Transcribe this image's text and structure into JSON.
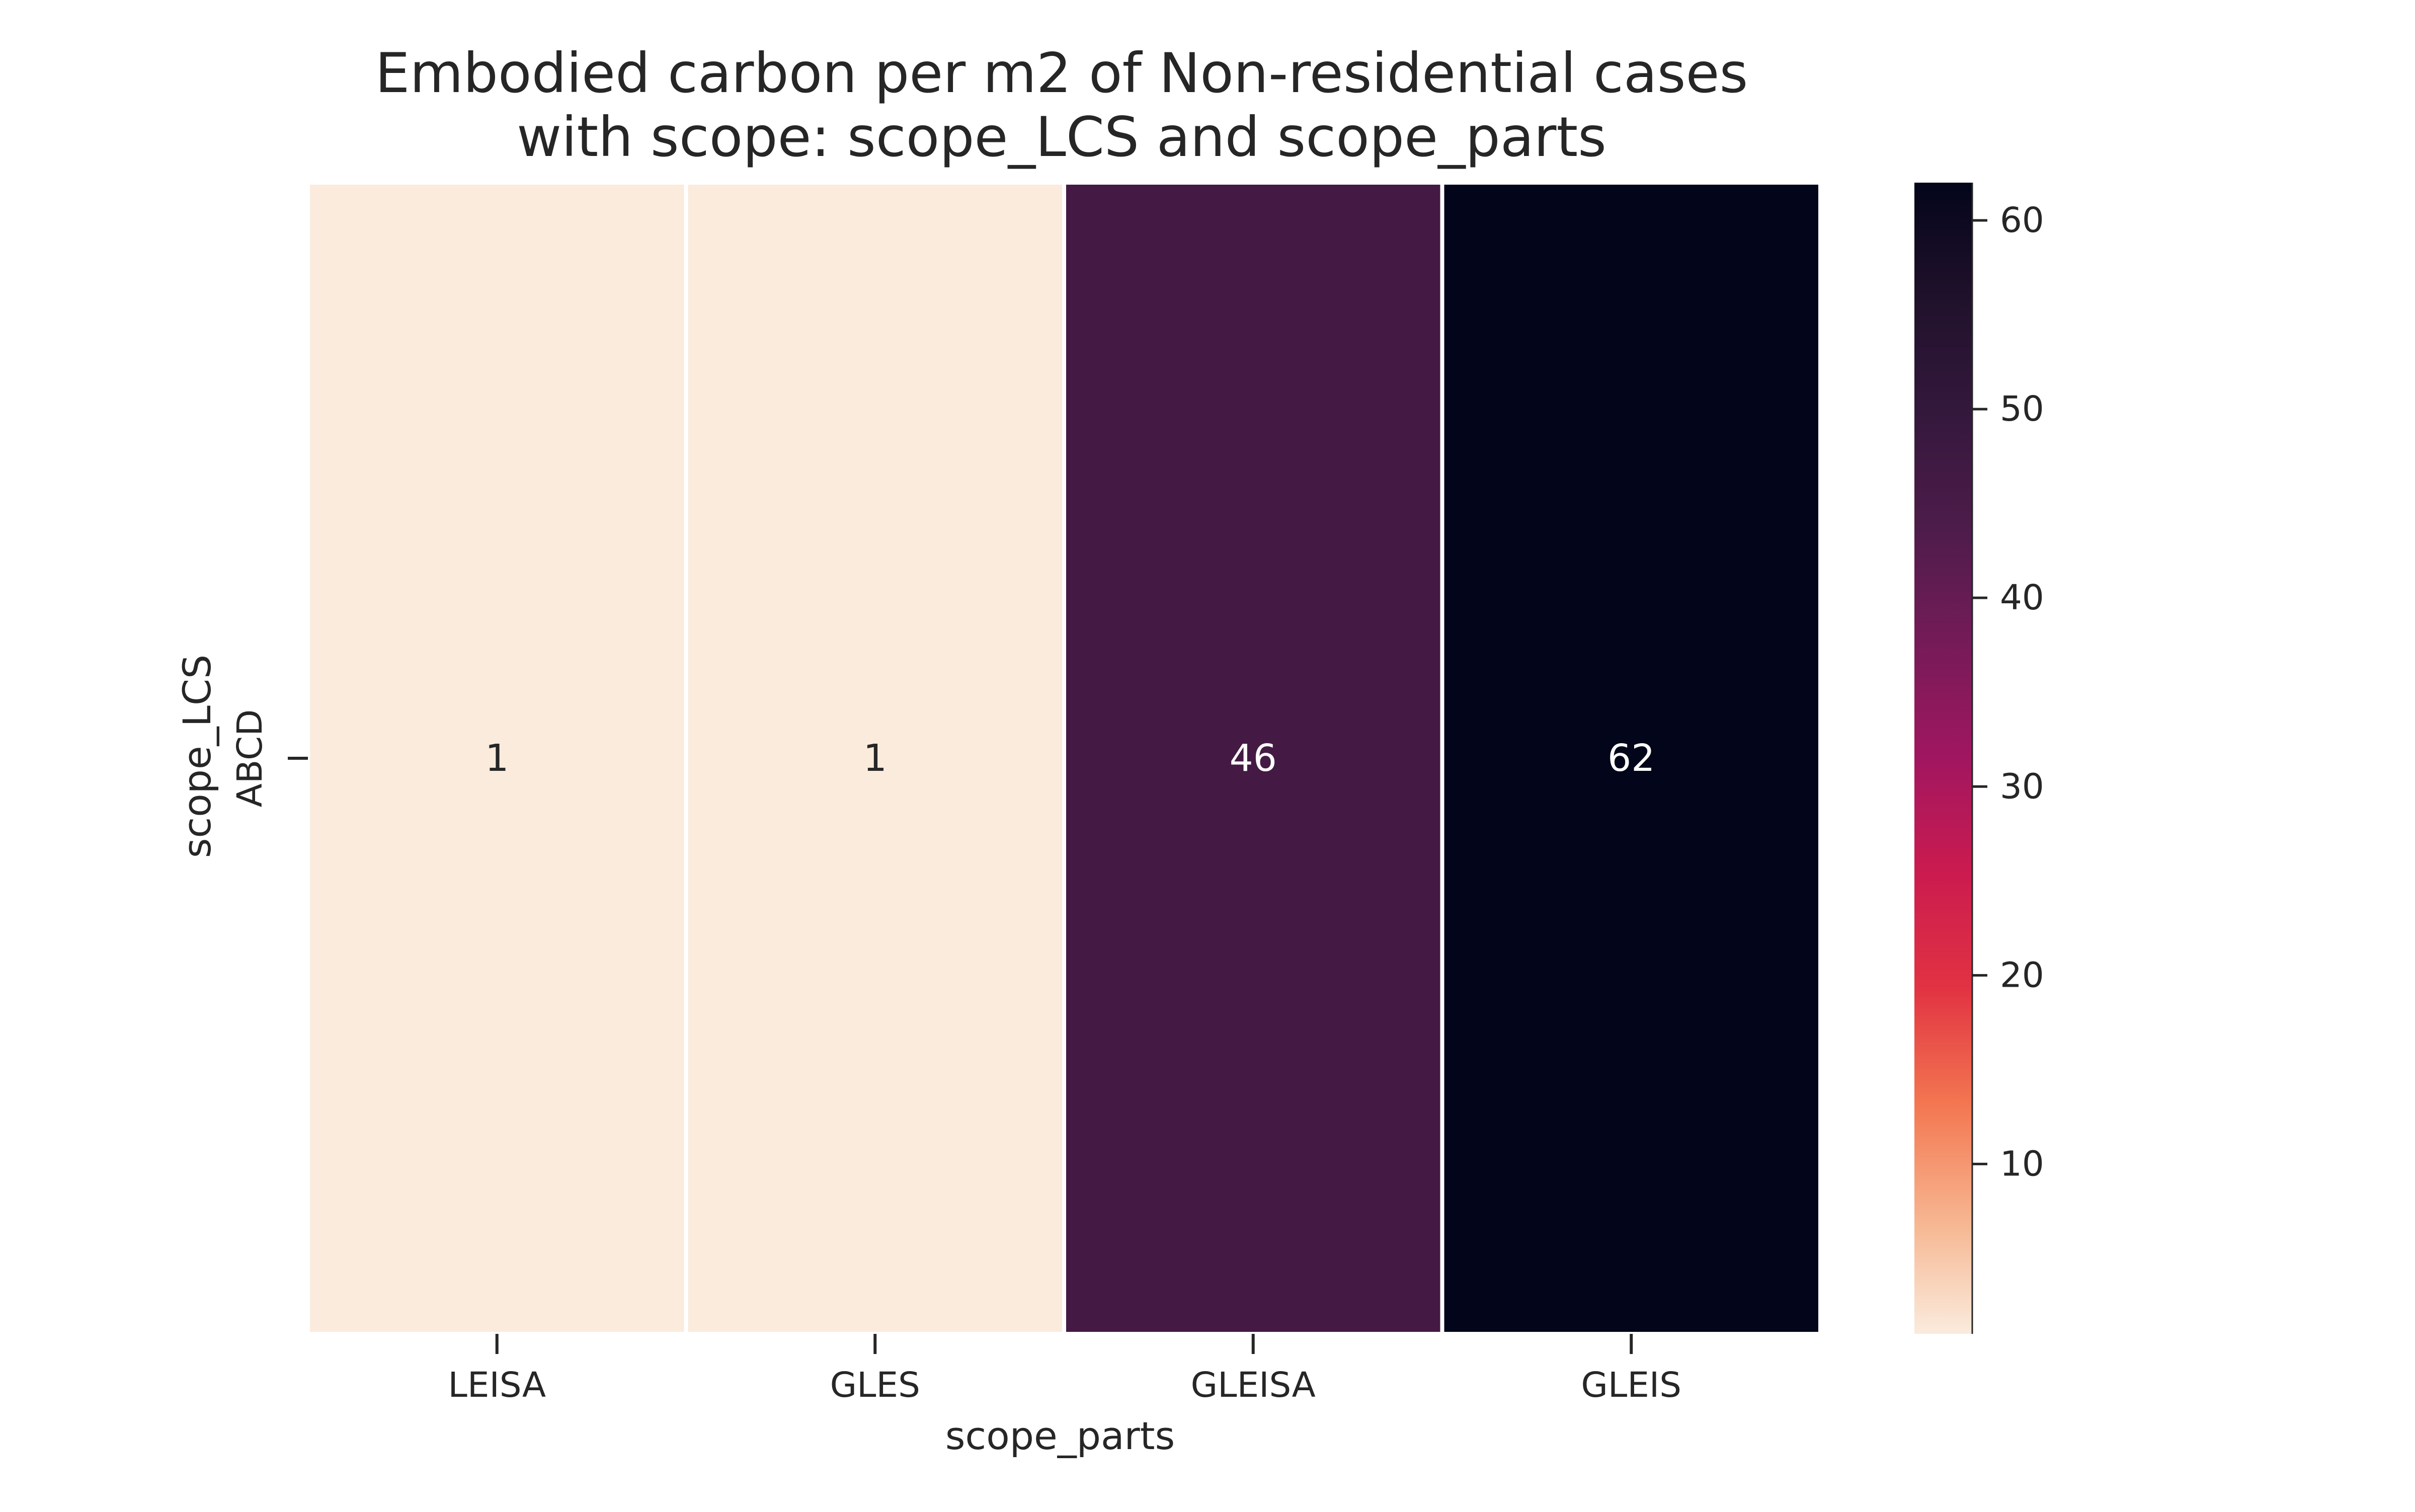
{
  "chart_data": {
    "type": "heatmap",
    "title_lines": [
      "Embodied carbon per m2 of Non-residential cases",
      "with scope: scope_LCS and scope_parts"
    ],
    "xlabel": "scope_parts",
    "ylabel": "scope_LCS",
    "x_categories": [
      "LEISA",
      "GLES",
      "GLEISA",
      "GLEIS"
    ],
    "y_categories": [
      "ABCD"
    ],
    "values": [
      [
        1,
        1,
        46,
        62
      ]
    ],
    "annotations": [
      [
        "1",
        "1",
        "46",
        "62"
      ]
    ],
    "colorbar": {
      "vmin": 1,
      "vmax": 62,
      "ticks": [
        10,
        20,
        30,
        40,
        50,
        60
      ],
      "tick_labels": [
        "10",
        "20",
        "30",
        "40",
        "50",
        "60"
      ]
    },
    "colormap": "rocket_r",
    "cell_separator_color": "#ffffff",
    "grid": false,
    "legend": "colorbar-right"
  }
}
